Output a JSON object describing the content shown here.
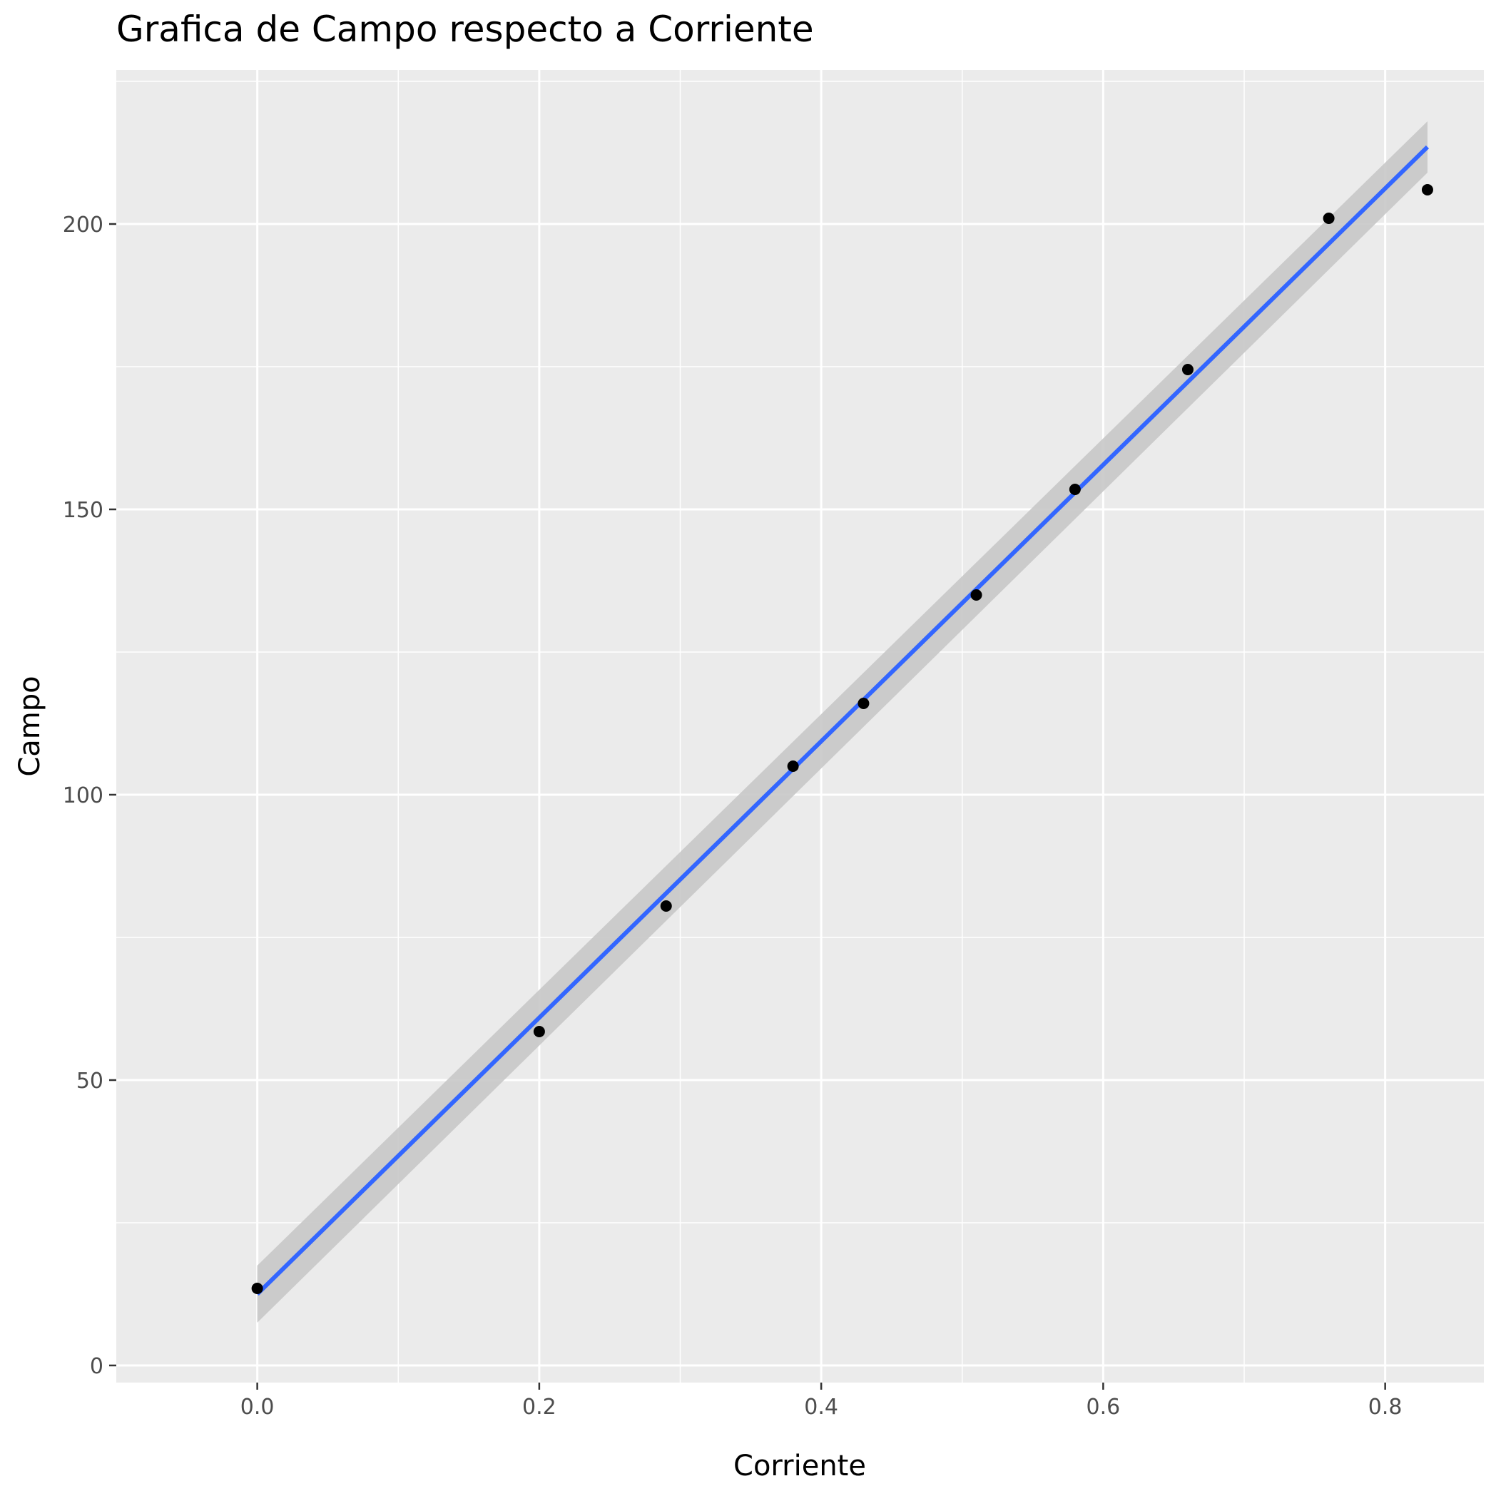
{
  "chart_data": {
    "type": "scatter",
    "title": "Grafica de Campo respecto a Corriente",
    "xlabel": "Corriente",
    "ylabel": "Campo",
    "xlim": [
      -0.1,
      0.87
    ],
    "ylim": [
      -3,
      227
    ],
    "x_ticks": [
      0.0,
      0.2,
      0.4,
      0.6,
      0.8
    ],
    "x_tick_labels": [
      "0.0",
      "0.2",
      "0.4",
      "0.6",
      "0.8"
    ],
    "y_ticks": [
      0,
      50,
      100,
      150,
      200
    ],
    "y_tick_labels": [
      "0",
      "50",
      "100",
      "150",
      "200"
    ],
    "grid": true,
    "legend": "none",
    "series": [
      {
        "type": "scatter",
        "x": [
          0.0,
          0.2,
          0.29,
          0.38,
          0.43,
          0.51,
          0.58,
          0.66,
          0.76,
          0.83
        ],
        "y": [
          13.5,
          58.5,
          80.5,
          105,
          116,
          135,
          153.5,
          174.5,
          201,
          206
        ],
        "color": "#000000"
      },
      {
        "type": "line",
        "method": "lm",
        "x": [
          0.0,
          0.83
        ],
        "y": [
          12.5,
          213.5
        ],
        "ci_lower": [
          7.5,
          209
        ],
        "ci_upper": [
          17.5,
          218
        ],
        "color": "#3366ff",
        "ci_color": "#c8c8c8"
      }
    ],
    "colors": {
      "panel": "#ebebeb",
      "grid": "#ffffff",
      "axis_text": "#4d4d4d",
      "tick": "#333333"
    }
  }
}
